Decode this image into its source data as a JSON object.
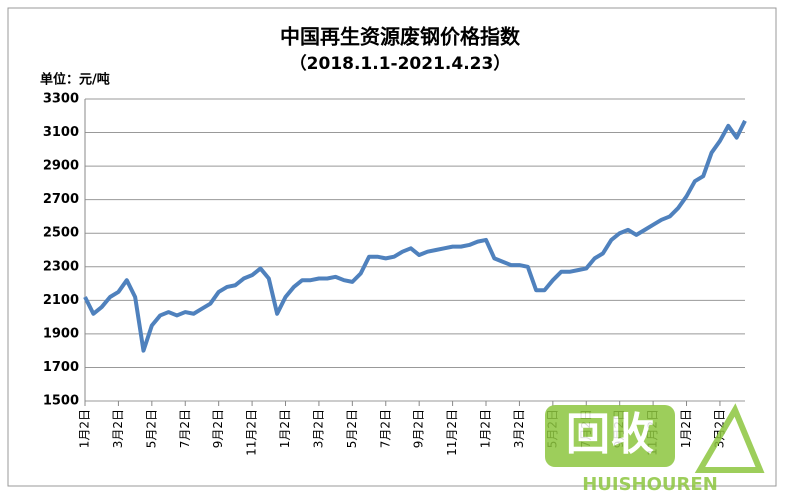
{
  "chart_data": {
    "type": "line",
    "title": "中国再生资源废钢价格指数",
    "subtitle": "（2018.1.1-2021.4.23）",
    "y_label": "单位：元/吨",
    "categories": [
      "1月2日",
      null,
      null,
      null,
      "3月2日",
      null,
      null,
      null,
      "5月2日",
      null,
      null,
      null,
      "7月2日",
      null,
      null,
      null,
      "9月2日",
      null,
      null,
      null,
      "11月2日",
      null,
      null,
      null,
      "1月2日",
      null,
      null,
      null,
      "3月2日",
      null,
      null,
      null,
      "5月2日",
      null,
      null,
      null,
      "7月2日",
      null,
      null,
      null,
      "9月2日",
      null,
      null,
      null,
      "11月2日",
      null,
      null,
      null,
      "1月2日",
      null,
      null,
      null,
      "3月2日",
      null,
      null,
      null,
      "5月2日",
      null,
      null,
      null,
      "7月2日",
      null,
      null,
      null,
      "9月2日",
      null,
      null,
      null,
      "11月2日",
      null,
      null,
      null,
      "1月2日",
      null,
      null,
      null,
      "3月2日",
      null,
      null,
      null
    ],
    "series": [
      {
        "color": "#4f81bd",
        "values": [
          2120,
          2020,
          2060,
          2120,
          2150,
          2220,
          2120,
          1800,
          1950,
          2010,
          2030,
          2010,
          2030,
          2020,
          2050,
          2080,
          2150,
          2180,
          2190,
          2230,
          2250,
          2290,
          2230,
          2020,
          2120,
          2180,
          2220,
          2220,
          2230,
          2230,
          2240,
          2220,
          2210,
          2260,
          2360,
          2360,
          2350,
          2360,
          2390,
          2410,
          2370,
          2390,
          2400,
          2410,
          2420,
          2420,
          2430,
          2450,
          2460,
          2350,
          2330,
          2310,
          2310,
          2300,
          2160,
          2160,
          2220,
          2270,
          2270,
          2280,
          2290,
          2350,
          2380,
          2460,
          2500,
          2520,
          2490,
          2520,
          2550,
          2580,
          2600,
          2650,
          2720,
          2810,
          2840,
          2980,
          3050,
          3140,
          3070,
          3170
        ]
      }
    ],
    "ylim": [
      1500,
      3300
    ],
    "yticks": [
      1500,
      1700,
      1900,
      2100,
      2300,
      2500,
      2700,
      2900,
      3100,
      3300
    ],
    "grid": true
  },
  "watermark": {
    "logo": "回收",
    "text": "HUISHOUREN"
  }
}
